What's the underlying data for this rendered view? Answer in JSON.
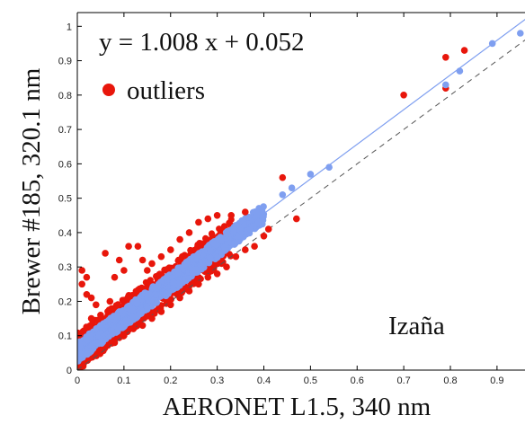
{
  "chart_data": {
    "type": "scatter",
    "title": "",
    "xlabel": "AERONET L1.5, 340 nm",
    "ylabel": "Brewer #185, 320.1 nm",
    "xlim": [
      0,
      0.96
    ],
    "ylim": [
      0,
      1.04
    ],
    "x_ticks": [
      "0",
      "0.1",
      "0.2",
      "0.3",
      "0.4",
      "0.5",
      "0.6",
      "0.7",
      "0.8",
      "0.9"
    ],
    "y_ticks": [
      "0",
      "0.1",
      "0.2",
      "0.3",
      "0.4",
      "0.5",
      "0.6",
      "0.7",
      "0.8",
      "0.9",
      "1"
    ],
    "grid": false,
    "fit_equation": "y = 1.008 x + 0.052",
    "fit": {
      "slope": 1.008,
      "intercept": 0.052
    },
    "one_to_one_line": true,
    "legend": {
      "label": "outliers",
      "position": "top-left"
    },
    "annotation": "Izaña",
    "colors": {
      "main_points": "#7f9ff0",
      "outliers": "#e8160b",
      "fit_line": "#7f9ff0",
      "reference_line": "#555555"
    },
    "main_band": {
      "x_range": [
        0.0,
        0.4
      ],
      "y_range": [
        0.06,
        0.45
      ],
      "description": "dense cloud of points along fit line"
    },
    "main_points": [
      {
        "x": 0.44,
        "y": 0.51
      },
      {
        "x": 0.46,
        "y": 0.53
      },
      {
        "x": 0.5,
        "y": 0.57
      },
      {
        "x": 0.54,
        "y": 0.59
      },
      {
        "x": 0.79,
        "y": 0.83
      },
      {
        "x": 0.82,
        "y": 0.87
      },
      {
        "x": 0.89,
        "y": 0.95
      },
      {
        "x": 0.95,
        "y": 0.98
      }
    ],
    "outlier_points": [
      {
        "x": 0.01,
        "y": 0.29
      },
      {
        "x": 0.02,
        "y": 0.27
      },
      {
        "x": 0.01,
        "y": 0.25
      },
      {
        "x": 0.03,
        "y": 0.21
      },
      {
        "x": 0.04,
        "y": 0.19
      },
      {
        "x": 0.02,
        "y": 0.22
      },
      {
        "x": 0.06,
        "y": 0.34
      },
      {
        "x": 0.08,
        "y": 0.27
      },
      {
        "x": 0.09,
        "y": 0.32
      },
      {
        "x": 0.1,
        "y": 0.29
      },
      {
        "x": 0.11,
        "y": 0.36
      },
      {
        "x": 0.13,
        "y": 0.36
      },
      {
        "x": 0.14,
        "y": 0.32
      },
      {
        "x": 0.15,
        "y": 0.29
      },
      {
        "x": 0.16,
        "y": 0.31
      },
      {
        "x": 0.18,
        "y": 0.33
      },
      {
        "x": 0.2,
        "y": 0.35
      },
      {
        "x": 0.22,
        "y": 0.38
      },
      {
        "x": 0.24,
        "y": 0.4
      },
      {
        "x": 0.26,
        "y": 0.43
      },
      {
        "x": 0.28,
        "y": 0.44
      },
      {
        "x": 0.3,
        "y": 0.45
      },
      {
        "x": 0.33,
        "y": 0.45
      },
      {
        "x": 0.36,
        "y": 0.46
      },
      {
        "x": 0.03,
        "y": 0.15
      },
      {
        "x": 0.05,
        "y": 0.16
      },
      {
        "x": 0.07,
        "y": 0.2
      },
      {
        "x": 0.08,
        "y": 0.08
      },
      {
        "x": 0.1,
        "y": 0.1
      },
      {
        "x": 0.12,
        "y": 0.12
      },
      {
        "x": 0.14,
        "y": 0.13
      },
      {
        "x": 0.16,
        "y": 0.15
      },
      {
        "x": 0.18,
        "y": 0.17
      },
      {
        "x": 0.2,
        "y": 0.19
      },
      {
        "x": 0.22,
        "y": 0.21
      },
      {
        "x": 0.24,
        "y": 0.23
      },
      {
        "x": 0.26,
        "y": 0.25
      },
      {
        "x": 0.28,
        "y": 0.27
      },
      {
        "x": 0.3,
        "y": 0.28
      },
      {
        "x": 0.32,
        "y": 0.3
      },
      {
        "x": 0.34,
        "y": 0.33
      },
      {
        "x": 0.36,
        "y": 0.35
      },
      {
        "x": 0.38,
        "y": 0.36
      },
      {
        "x": 0.4,
        "y": 0.39
      },
      {
        "x": 0.41,
        "y": 0.41
      },
      {
        "x": 0.44,
        "y": 0.56
      },
      {
        "x": 0.47,
        "y": 0.44
      },
      {
        "x": 0.7,
        "y": 0.8
      },
      {
        "x": 0.79,
        "y": 0.82
      },
      {
        "x": 0.79,
        "y": 0.91
      },
      {
        "x": 0.83,
        "y": 0.93
      }
    ]
  }
}
